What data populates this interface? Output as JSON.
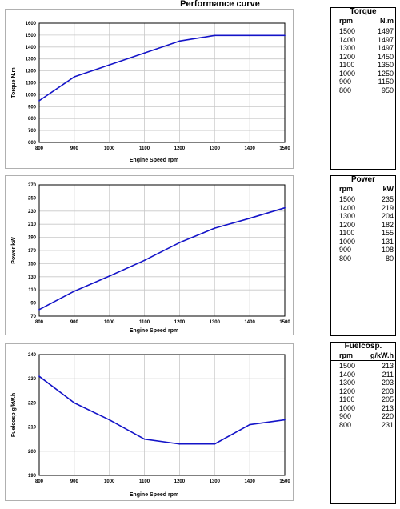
{
  "title": "Performance curve",
  "colors": {
    "line": "#1414c8",
    "grid": "#c8c8c8",
    "plot_border": "#000000"
  },
  "chart_data": [
    {
      "type": "line",
      "title": "",
      "xlabel": "Engine Speed rpm",
      "ylabel": "Torque N.m",
      "x": [
        800,
        900,
        1000,
        1100,
        1200,
        1300,
        1400,
        1500
      ],
      "y": [
        950,
        1150,
        1250,
        1350,
        1450,
        1497,
        1497,
        1497
      ],
      "xlim": [
        800,
        1500
      ],
      "ylim": [
        600,
        1600
      ],
      "xticks": [
        "800",
        "900",
        "1000",
        "1100",
        "1200",
        "1300",
        "1400",
        "1500"
      ],
      "yticks": [
        "600",
        "700",
        "800",
        "900",
        "1000",
        "1100",
        "1200",
        "1300",
        "1400",
        "1500",
        "1600"
      ],
      "grid": true
    },
    {
      "type": "line",
      "title": "",
      "xlabel": "Engine Speed rpm",
      "ylabel": "Power kW",
      "x": [
        800,
        900,
        1000,
        1100,
        1200,
        1300,
        1400,
        1500
      ],
      "y": [
        80,
        108,
        131,
        155,
        182,
        204,
        219,
        235
      ],
      "xlim": [
        800,
        1500
      ],
      "ylim": [
        70,
        270
      ],
      "xticks": [
        "800",
        "900",
        "1000",
        "1100",
        "1200",
        "1300",
        "1400",
        "1500"
      ],
      "yticks": [
        "70",
        "90",
        "110",
        "130",
        "150",
        "170",
        "190",
        "210",
        "230",
        "250",
        "270"
      ],
      "grid": true
    },
    {
      "type": "line",
      "title": "",
      "xlabel": "Engine Speed rpm",
      "ylabel": "Fuelcosp g/kW.h",
      "x": [
        800,
        900,
        1000,
        1100,
        1200,
        1300,
        1400,
        1500
      ],
      "y": [
        231,
        220,
        213,
        205,
        203,
        203,
        211,
        213
      ],
      "xlim": [
        800,
        1500
      ],
      "ylim": [
        190,
        240
      ],
      "xticks": [
        "800",
        "900",
        "1000",
        "1100",
        "1200",
        "1300",
        "1400",
        "1500"
      ],
      "yticks": [
        "190",
        "200",
        "210",
        "220",
        "230",
        "240"
      ],
      "grid": true
    }
  ],
  "tables": [
    {
      "title": "Torque",
      "headers": [
        "rpm",
        "N.m"
      ],
      "rows": [
        [
          "1500",
          "1497"
        ],
        [
          "1400",
          "1497"
        ],
        [
          "1300",
          "1497"
        ],
        [
          "1200",
          "1450"
        ],
        [
          "1100",
          "1350"
        ],
        [
          "1000",
          "1250"
        ],
        [
          "900",
          "1150"
        ],
        [
          "800",
          "950"
        ]
      ]
    },
    {
      "title": "Power",
      "headers": [
        "rpm",
        "kW"
      ],
      "rows": [
        [
          "1500",
          "235"
        ],
        [
          "1400",
          "219"
        ],
        [
          "1300",
          "204"
        ],
        [
          "1200",
          "182"
        ],
        [
          "1100",
          "155"
        ],
        [
          "1000",
          "131"
        ],
        [
          "900",
          "108"
        ],
        [
          "800",
          "80"
        ]
      ]
    },
    {
      "title": "Fuelcosp.",
      "headers": [
        "rpm",
        "g/kW.h"
      ],
      "rows": [
        [
          "1500",
          "213"
        ],
        [
          "1400",
          "211"
        ],
        [
          "1300",
          "203"
        ],
        [
          "1200",
          "203"
        ],
        [
          "1100",
          "205"
        ],
        [
          "1000",
          "213"
        ],
        [
          "900",
          "220"
        ],
        [
          "800",
          "231"
        ]
      ]
    }
  ]
}
